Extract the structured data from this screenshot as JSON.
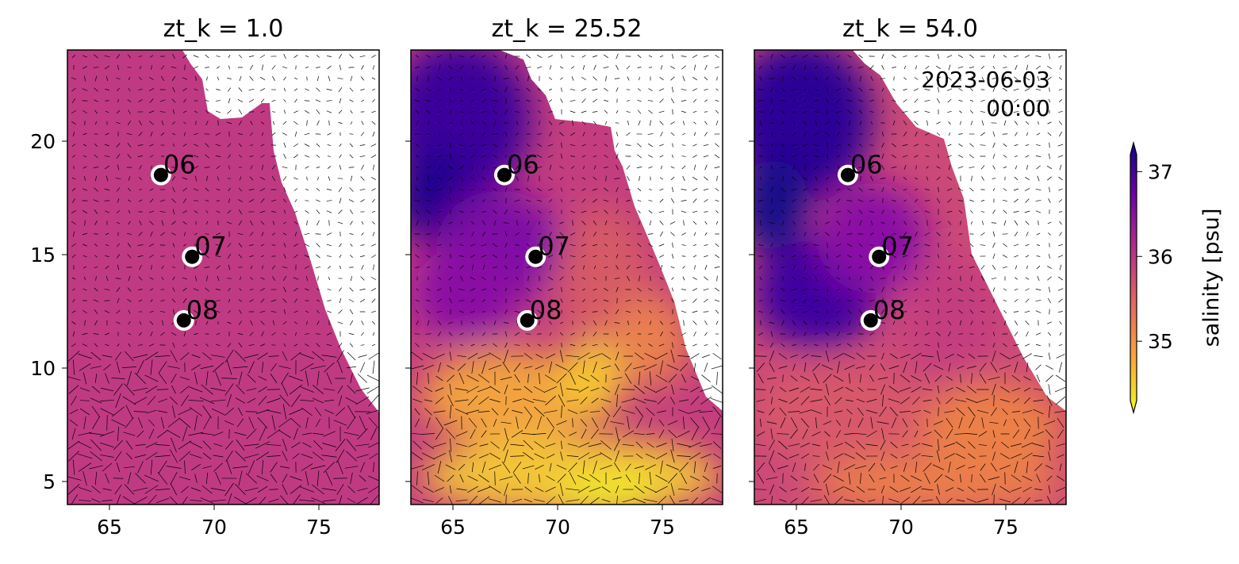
{
  "chart_data": [
    {
      "type": "heatmap",
      "title": "zt_k = 1.0",
      "xlim": [
        63,
        78
      ],
      "ylim": [
        4,
        24
      ],
      "xticks": [
        "65",
        "70",
        "75"
      ],
      "yticks": [
        "5",
        "10",
        "15",
        "20"
      ],
      "stations": [
        {
          "label": "06",
          "lon": 67.5,
          "lat": 18.5
        },
        {
          "label": "07",
          "lon": 69.0,
          "lat": 14.9
        },
        {
          "label": "08",
          "lon": 68.6,
          "lat": 12.1
        }
      ]
    },
    {
      "type": "heatmap",
      "title": "zt_k = 25.52",
      "xlim": [
        63,
        78
      ],
      "ylim": [
        4,
        24
      ],
      "xticks": [
        "65",
        "70",
        "75"
      ],
      "stations": [
        {
          "label": "06",
          "lon": 67.5,
          "lat": 18.5
        },
        {
          "label": "07",
          "lon": 69.0,
          "lat": 14.9
        },
        {
          "label": "08",
          "lon": 68.6,
          "lat": 12.1
        }
      ]
    },
    {
      "type": "heatmap",
      "title": "zt_k = 54.0",
      "xlim": [
        63,
        78
      ],
      "ylim": [
        4,
        24
      ],
      "xticks": [
        "65",
        "70",
        "75"
      ],
      "annotation_line1": "2023-06-03",
      "annotation_line2": "00:00",
      "stations": [
        {
          "label": "06",
          "lon": 67.5,
          "lat": 18.5
        },
        {
          "label": "07",
          "lon": 69.0,
          "lat": 14.9
        },
        {
          "label": "08",
          "lon": 68.6,
          "lat": 12.1
        }
      ]
    }
  ],
  "colorbar": {
    "label": "salinity [psu]",
    "ticks": [
      "35",
      "36",
      "37"
    ],
    "range": [
      34.3,
      37.2
    ],
    "colormap": [
      "#f0f921",
      "#fca636",
      "#e16462",
      "#b12a90",
      "#6a00a8",
      "#0d0887"
    ]
  }
}
